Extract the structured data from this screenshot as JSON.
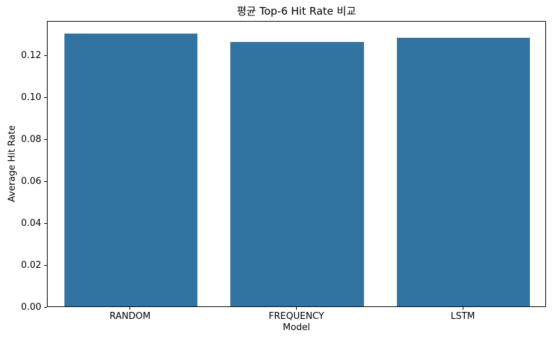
{
  "chart_data": {
    "type": "bar",
    "title": "평균 Top-6 Hit Rate 비교",
    "xlabel": "Model",
    "ylabel": "Average Hit Rate",
    "categories": [
      "RANDOM",
      "FREQUENCY",
      "LSTM"
    ],
    "values": [
      0.13,
      0.126,
      0.128
    ],
    "ylim": [
      0,
      0.1365
    ],
    "yticks": [
      0.0,
      0.02,
      0.04,
      0.06,
      0.08,
      0.1,
      0.12
    ],
    "ytick_labels": [
      "0.00",
      "0.02",
      "0.04",
      "0.06",
      "0.08",
      "0.10",
      "0.12"
    ],
    "bar_color": "#3274a1",
    "bar_width_fraction": 0.8,
    "grid": false,
    "legend_position": "none",
    "background_color": "#ffffff",
    "spine_color": "#000000",
    "text_color": "#000000"
  }
}
